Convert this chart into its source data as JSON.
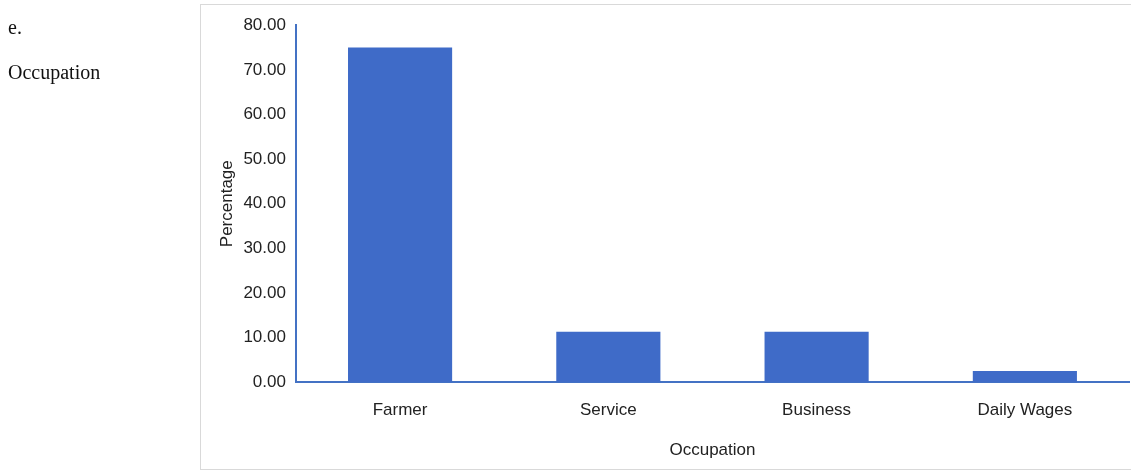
{
  "chart_data": {
    "type": "bar",
    "xlabel": "Occupation",
    "ylabel": "Percentage",
    "annotations": [
      "e.",
      "Occupation"
    ],
    "categories": [
      "Farmer",
      "Service",
      "Business",
      "Daily Wages"
    ],
    "values": [
      75,
      11.3,
      11.3,
      2.5
    ],
    "color": "#3f6bc8",
    "ylim": [
      0,
      80
    ],
    "yticks": [
      {
        "value": 0,
        "label": "0.00"
      },
      {
        "value": 10,
        "label": "10.00"
      },
      {
        "value": 20,
        "label": "20.00"
      },
      {
        "value": 30,
        "label": "30.00"
      },
      {
        "value": 40,
        "label": "40.00"
      },
      {
        "value": 50,
        "label": "50.00"
      },
      {
        "value": 60,
        "label": "60.00"
      },
      {
        "value": 70,
        "label": "70.00"
      },
      {
        "value": 80,
        "label": "80.00"
      }
    ],
    "grid": false,
    "legend": false
  }
}
